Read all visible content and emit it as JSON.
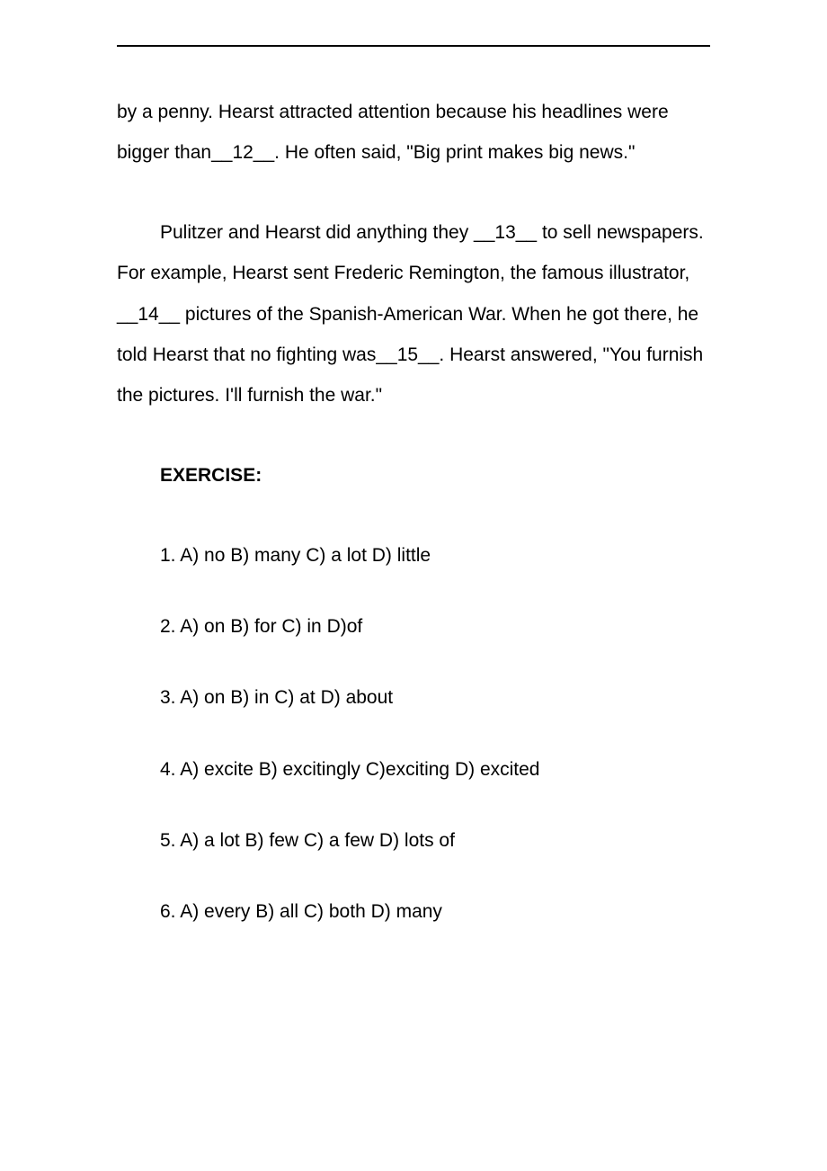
{
  "paragraphs": {
    "p1": "by a penny. Hearst attracted attention because his headlines were bigger than__12__. He often said, \"Big print makes big news.\"",
    "p2": "Pulitzer and Hearst did anything they __13__ to sell newspapers. For example, Hearst sent Frederic Remington, the famous illustrator, __14__ pictures of the Spanish-American War. When he got there, he told Hearst that no fighting was__15__. Hearst answered, \"You furnish the pictures. I'll furnish the war.\""
  },
  "exercise": {
    "heading": "EXERCISE:",
    "items": [
      "1. A) no B) many C) a lot D) little",
      "2. A) on B) for C) in D)of",
      "3. A) on B) in C) at D) about",
      "4. A) excite B) excitingly C)exciting D) excited",
      "5. A) a lot B) few C) a few D) lots of",
      "6. A) every B) all C) both D) many"
    ]
  }
}
